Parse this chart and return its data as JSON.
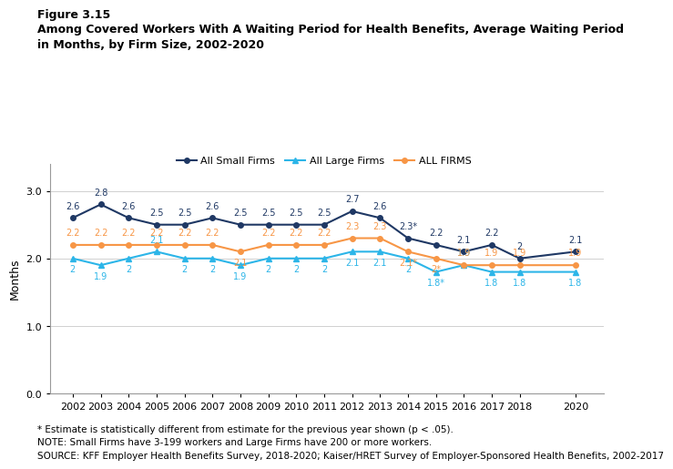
{
  "years": [
    2002,
    2003,
    2004,
    2005,
    2006,
    2007,
    2008,
    2009,
    2010,
    2011,
    2012,
    2013,
    2014,
    2015,
    2016,
    2017,
    2018,
    2020
  ],
  "small_firms": [
    2.6,
    2.8,
    2.6,
    2.5,
    2.5,
    2.6,
    2.5,
    2.5,
    2.5,
    2.5,
    2.7,
    2.6,
    2.3,
    2.2,
    2.1,
    2.2,
    2.0,
    2.1
  ],
  "large_firms": [
    2.0,
    1.9,
    2.0,
    2.1,
    2.0,
    2.0,
    1.9,
    2.0,
    2.0,
    2.0,
    2.1,
    2.1,
    2.0,
    1.8,
    1.9,
    1.8,
    1.8,
    1.8
  ],
  "all_firms": [
    2.2,
    2.2,
    2.2,
    2.2,
    2.2,
    2.2,
    2.1,
    2.2,
    2.2,
    2.2,
    2.3,
    2.3,
    2.1,
    2.0,
    1.9,
    1.9,
    1.9,
    1.9
  ],
  "small_firms_labels": [
    "2.6",
    "2.8",
    "2.6",
    "2.5",
    "2.5",
    "2.6",
    "2.5",
    "2.5",
    "2.5",
    "2.5",
    "2.7",
    "2.6",
    "2.3*",
    "2.2",
    "2.1",
    "2.2",
    "2",
    "2.1"
  ],
  "large_firms_labels": [
    "2",
    "1.9",
    "2",
    "2.1",
    "2",
    "2",
    "1.9",
    "2",
    "2",
    "2",
    "2.1",
    "2.1",
    "2",
    "1.8*",
    "1.9",
    "1.8",
    "1.8",
    "1.8"
  ],
  "all_firms_labels": [
    "2.2",
    "2.2",
    "2.2",
    "2.2",
    "2.2",
    "2.2",
    "2.1",
    "2.2",
    "2.2",
    "2.2",
    "2.3",
    "2.3",
    "2.1*",
    "2*",
    "1.9",
    "1.9",
    "1.9",
    "1.9"
  ],
  "small_color": "#1f3864",
  "large_color": "#2cb5e8",
  "all_color": "#f79646",
  "small_label": "All Small Firms",
  "large_label": "All Large Firms",
  "all_label": "ALL FIRMS",
  "ylabel": "Months",
  "ylim": [
    0.0,
    3.4
  ],
  "yticks": [
    0.0,
    1.0,
    2.0,
    3.0
  ],
  "figure_label": "Figure 3.15",
  "title_line1": "Among Covered Workers With A Waiting Period for Health Benefits, Average Waiting Period",
  "title_line2": "in Months, by Firm Size, 2002-2020",
  "footnote1": "* Estimate is statistically different from estimate for the previous year shown (p < .05).",
  "footnote2": "NOTE: Small Firms have 3-199 workers and Large Firms have 200 or more workers.",
  "footnote3": "SOURCE: KFF Employer Health Benefits Survey, 2018-2020; Kaiser/HRET Survey of Employer-Sponsored Health Benefits, 2002-2017",
  "bg_color": "#ffffff"
}
